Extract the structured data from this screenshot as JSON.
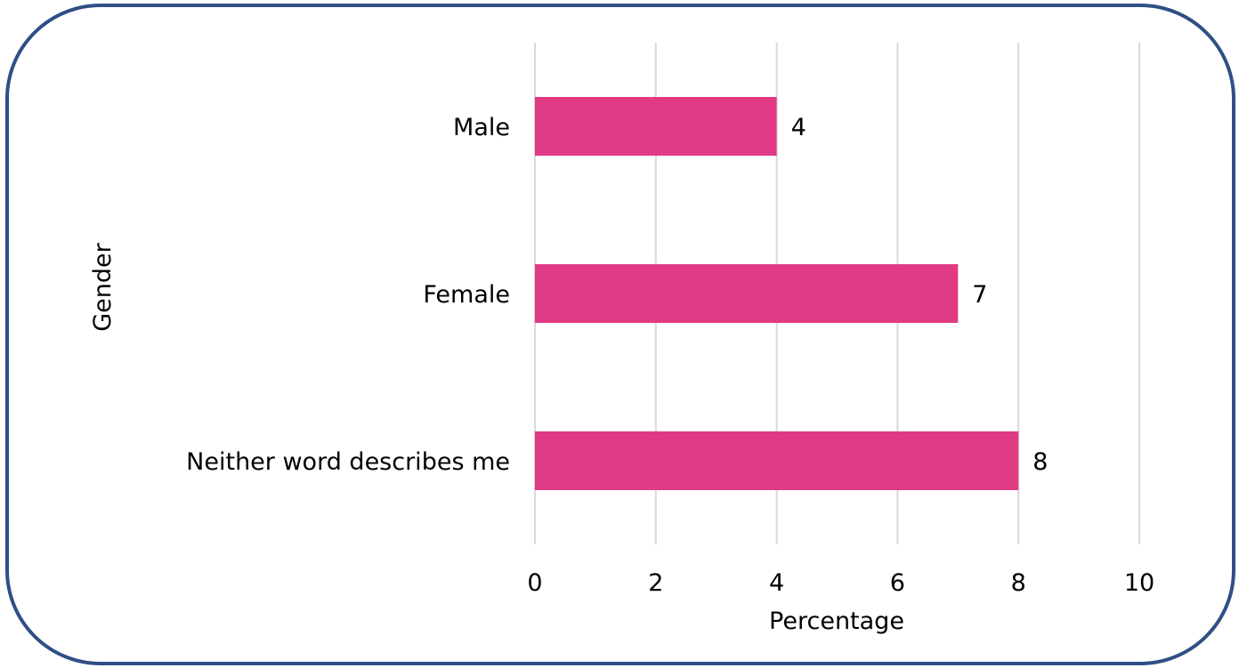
{
  "chart_data": {
    "type": "bar",
    "orientation": "horizontal",
    "categories": [
      "Male",
      "Female",
      "Neither word describes me"
    ],
    "values": [
      4,
      7,
      8
    ],
    "data_labels": [
      "4",
      "7",
      "8"
    ],
    "title": "",
    "xlabel": "Percentage",
    "ylabel": "Gender",
    "xlim": [
      0,
      10
    ],
    "x_ticks": [
      0,
      2,
      4,
      6,
      8,
      10
    ],
    "x_tick_labels": [
      "0",
      "2",
      "4",
      "6",
      "8",
      "10"
    ],
    "grid": true,
    "legend": "none",
    "bar_color": "#E03A84",
    "frame_color": "#2F4F86",
    "gridline_color": "#D9D9D9"
  }
}
